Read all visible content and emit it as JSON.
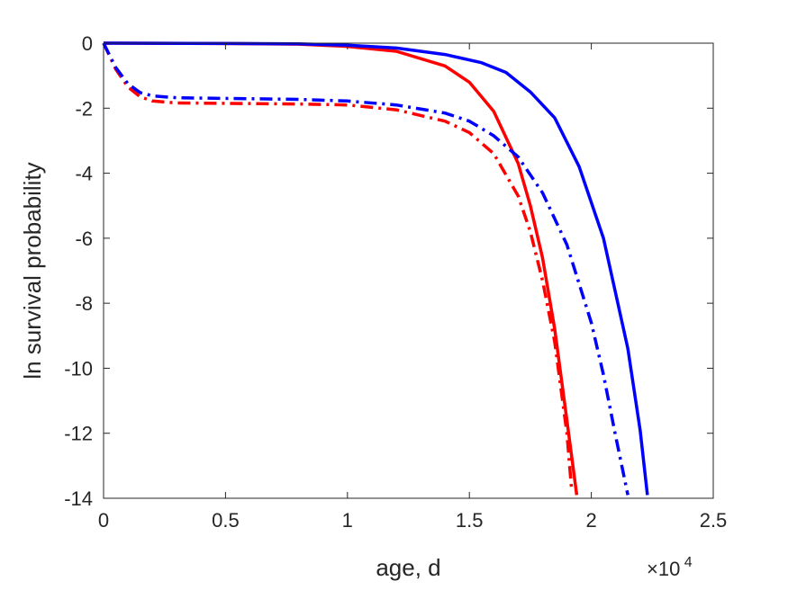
{
  "chart_data": {
    "type": "line",
    "title": "",
    "xlabel": "age, d",
    "ylabel": "ln survival probability",
    "x_exponent_label": {
      "base": "×10",
      "exponent": "4"
    },
    "xlim": [
      0,
      2.5
    ],
    "ylim": [
      -14,
      0
    ],
    "x_ticks": [
      0,
      0.5,
      1,
      1.5,
      2,
      2.5
    ],
    "x_tick_labels": [
      "0",
      "0.5",
      "1",
      "1.5",
      "2",
      "2.5"
    ],
    "y_ticks": [
      0,
      -2,
      -4,
      -6,
      -8,
      -10,
      -12,
      -14
    ],
    "y_tick_labels": [
      "0",
      "-2",
      "-4",
      "-6",
      "-8",
      "-10",
      "-12",
      "-14"
    ],
    "grid": false,
    "legend": "none",
    "series": [
      {
        "color": "#ff0000",
        "style": "solid",
        "x": [
          0,
          0.5,
          0.8,
          1.0,
          1.2,
          1.4,
          1.5,
          1.6,
          1.7,
          1.75,
          1.8,
          1.85,
          1.9,
          1.94
        ],
        "y": [
          0,
          -0.01,
          -0.03,
          -0.1,
          -0.25,
          -0.7,
          -1.2,
          -2.1,
          -3.7,
          -5.0,
          -6.6,
          -8.8,
          -11.6,
          -13.9
        ]
      },
      {
        "color": "#0000ff",
        "style": "solid",
        "x": [
          0,
          0.5,
          0.8,
          1.0,
          1.2,
          1.4,
          1.55,
          1.65,
          1.75,
          1.85,
          1.95,
          2.05,
          2.15,
          2.2,
          2.23
        ],
        "y": [
          0,
          -0.01,
          -0.02,
          -0.06,
          -0.15,
          -0.35,
          -0.6,
          -0.9,
          -1.5,
          -2.3,
          -3.8,
          -6.0,
          -9.4,
          -11.9,
          -13.9
        ]
      },
      {
        "color": "#ff0000",
        "style": "dashdot",
        "x": [
          0,
          0.05,
          0.1,
          0.15,
          0.2,
          0.3,
          0.5,
          0.8,
          1.0,
          1.2,
          1.4,
          1.5,
          1.6,
          1.7,
          1.75,
          1.8,
          1.85,
          1.9,
          1.92
        ],
        "y": [
          0,
          -0.8,
          -1.35,
          -1.65,
          -1.78,
          -1.84,
          -1.85,
          -1.87,
          -1.9,
          -2.05,
          -2.4,
          -2.75,
          -3.4,
          -4.7,
          -5.8,
          -7.3,
          -9.2,
          -12.0,
          -13.8
        ]
      },
      {
        "color": "#0000ff",
        "style": "dashdot",
        "x": [
          0,
          0.05,
          0.1,
          0.15,
          0.2,
          0.3,
          0.5,
          0.8,
          1.0,
          1.2,
          1.4,
          1.5,
          1.6,
          1.7,
          1.8,
          1.9,
          2.0,
          2.05,
          2.1,
          2.15
        ],
        "y": [
          0,
          -0.75,
          -1.25,
          -1.52,
          -1.62,
          -1.68,
          -1.7,
          -1.73,
          -1.78,
          -1.9,
          -2.15,
          -2.4,
          -2.85,
          -3.5,
          -4.6,
          -6.2,
          -8.6,
          -10.2,
          -12.1,
          -13.9
        ]
      }
    ]
  }
}
